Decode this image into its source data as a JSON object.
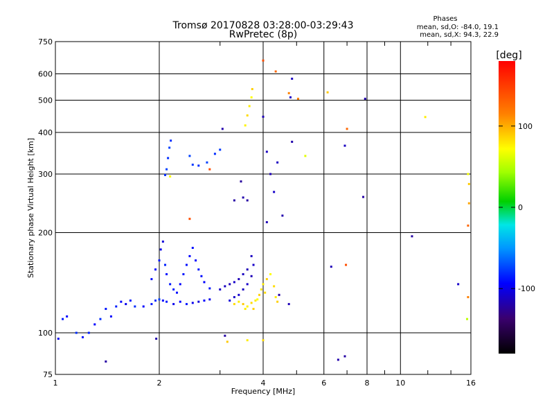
{
  "chart_data": {
    "type": "scatter",
    "title": "Tromsø 20170828 03:28:00-03:29:43",
    "subtitle": "RwPretec (8p)",
    "xlabel": "Frequency [MHz]",
    "ylabel": "Stationary phase Virtual Height [km]",
    "xscale": "log",
    "yscale": "log",
    "xlim": [
      1,
      16
    ],
    "ylim": [
      75,
      750
    ],
    "x_ticks": [
      1,
      2,
      4,
      6,
      8,
      10,
      16
    ],
    "x_tick_labels": [
      "1",
      "2",
      "4",
      "6",
      "8",
      "10",
      "16"
    ],
    "x_minor": [
      3,
      5,
      7,
      9,
      12,
      14
    ],
    "y_ticks": [
      75,
      100,
      200,
      300,
      400,
      500,
      600,
      750
    ],
    "y_tick_labels": [
      "75",
      "100",
      "200",
      "300",
      "400",
      "500",
      "600",
      "750"
    ],
    "grid": true,
    "phases_box": {
      "title": "Phases",
      "line1": "mean, sd,O: -84.0, 19.1",
      "line2": "mean, sd,X:  94.3, 22.9"
    },
    "colorbar": {
      "label": "[deg]",
      "range": [
        -180,
        180
      ],
      "ticks": [
        100,
        0,
        -100
      ],
      "tick_labels": [
        "100",
        "0",
        "-100"
      ]
    },
    "series": [
      {
        "name": "O",
        "points": [
          [
            1.02,
            96,
            -100
          ],
          [
            1.05,
            110,
            -90
          ],
          [
            1.08,
            112,
            -95
          ],
          [
            1.15,
            100,
            -85
          ],
          [
            1.2,
            97,
            -92
          ],
          [
            1.25,
            100,
            -88
          ],
          [
            1.3,
            106,
            -95
          ],
          [
            1.35,
            110,
            -85
          ],
          [
            1.4,
            118,
            -90
          ],
          [
            1.45,
            112,
            -95
          ],
          [
            1.5,
            120,
            -88
          ],
          [
            1.55,
            124,
            -95
          ],
          [
            1.6,
            122,
            -100
          ],
          [
            1.65,
            125,
            -90
          ],
          [
            1.7,
            120,
            -85
          ],
          [
            1.8,
            120,
            -95
          ],
          [
            1.9,
            122,
            -90
          ],
          [
            1.95,
            125,
            -85
          ],
          [
            2.0,
            126,
            -80
          ],
          [
            2.05,
            125,
            -95
          ],
          [
            2.1,
            124,
            -90
          ],
          [
            2.2,
            122,
            -100
          ],
          [
            2.3,
            124,
            -95
          ],
          [
            2.4,
            122,
            -90
          ],
          [
            2.5,
            123,
            -100
          ],
          [
            2.6,
            124,
            -105
          ],
          [
            2.7,
            125,
            -95
          ],
          [
            2.8,
            126,
            -100
          ],
          [
            1.9,
            145,
            -92
          ],
          [
            1.95,
            155,
            -95
          ],
          [
            2.0,
            165,
            -90
          ],
          [
            2.02,
            178,
            -100
          ],
          [
            2.05,
            188,
            -105
          ],
          [
            2.08,
            160,
            -88
          ],
          [
            2.1,
            150,
            -92
          ],
          [
            2.15,
            140,
            -90
          ],
          [
            2.2,
            135,
            -88
          ],
          [
            2.25,
            132,
            -92
          ],
          [
            2.3,
            140,
            -95
          ],
          [
            2.35,
            150,
            -90
          ],
          [
            2.4,
            160,
            -92
          ],
          [
            2.45,
            170,
            -95
          ],
          [
            2.5,
            180,
            -92
          ],
          [
            2.55,
            165,
            -95
          ],
          [
            2.6,
            155,
            -90
          ],
          [
            2.65,
            148,
            -92
          ],
          [
            2.7,
            142,
            -95
          ],
          [
            2.8,
            136,
            -90
          ],
          [
            2.08,
            298,
            -85
          ],
          [
            2.1,
            310,
            -80
          ],
          [
            2.12,
            335,
            -85
          ],
          [
            2.14,
            360,
            -80
          ],
          [
            2.16,
            378,
            -85
          ],
          [
            2.45,
            340,
            -80
          ],
          [
            2.5,
            320,
            -82
          ],
          [
            2.6,
            318,
            -85
          ],
          [
            2.75,
            325,
            -80
          ],
          [
            2.9,
            345,
            -85
          ],
          [
            3.0,
            355,
            -82
          ],
          [
            3.0,
            135,
            -110
          ],
          [
            3.1,
            138,
            -112
          ],
          [
            3.2,
            140,
            -115
          ],
          [
            3.3,
            142,
            -110
          ],
          [
            3.4,
            145,
            -115
          ],
          [
            3.5,
            150,
            -112
          ],
          [
            3.6,
            155,
            -115
          ],
          [
            3.7,
            170,
            -112
          ],
          [
            3.2,
            125,
            -105
          ],
          [
            3.3,
            128,
            -110
          ],
          [
            3.4,
            130,
            -108
          ],
          [
            3.5,
            135,
            -112
          ],
          [
            3.6,
            140,
            -110
          ],
          [
            3.7,
            148,
            -115
          ],
          [
            3.75,
            160,
            -110
          ],
          [
            3.3,
            250,
            -120
          ],
          [
            3.5,
            255,
            -118
          ],
          [
            3.6,
            250,
            -120
          ],
          [
            3.45,
            285,
            -122
          ],
          [
            3.05,
            410,
            -118
          ],
          [
            4.0,
            446,
            -115
          ],
          [
            4.1,
            350,
            -112
          ],
          [
            4.2,
            300,
            -115
          ],
          [
            4.3,
            265,
            -110
          ],
          [
            4.4,
            325,
            -112
          ],
          [
            4.55,
            225,
            -118
          ],
          [
            4.8,
            510,
            -110
          ],
          [
            4.85,
            580,
            -112
          ],
          [
            4.85,
            375,
            -118
          ],
          [
            4.45,
            130,
            -120
          ],
          [
            4.75,
            122,
            -115
          ],
          [
            3.1,
            98,
            -120
          ],
          [
            4.1,
            215,
            -115
          ],
          [
            6.3,
            158,
            -115
          ],
          [
            6.6,
            83,
            -118
          ],
          [
            6.9,
            85,
            -120
          ],
          [
            6.9,
            365,
            -112
          ],
          [
            7.8,
            256,
            -120
          ],
          [
            7.9,
            505,
            -118
          ],
          [
            10.8,
            195,
            -120
          ],
          [
            14.7,
            140,
            -110
          ],
          [
            1.4,
            82,
            -120
          ],
          [
            1.96,
            96,
            -118
          ]
        ]
      },
      {
        "name": "X",
        "points": [
          [
            3.3,
            122,
            105
          ],
          [
            3.4,
            124,
            100
          ],
          [
            3.5,
            122,
            110
          ],
          [
            3.6,
            120,
            98
          ],
          [
            3.7,
            123,
            105
          ],
          [
            3.8,
            125,
            100
          ],
          [
            3.9,
            130,
            108
          ],
          [
            3.95,
            135,
            102
          ],
          [
            4.0,
            140,
            100
          ],
          [
            4.1,
            145,
            108
          ],
          [
            4.2,
            150,
            95
          ],
          [
            4.3,
            138,
            105
          ],
          [
            4.35,
            128,
            100
          ],
          [
            4.4,
            124,
            108
          ],
          [
            3.55,
            118,
            100
          ],
          [
            3.75,
            118,
            108
          ],
          [
            3.85,
            126,
            95
          ],
          [
            4.05,
            132,
            105
          ],
          [
            3.55,
            420,
            98
          ],
          [
            3.6,
            450,
            105
          ],
          [
            3.65,
            480,
            100
          ],
          [
            3.7,
            510,
            95
          ],
          [
            3.72,
            540,
            108
          ],
          [
            3.15,
            94,
            110
          ],
          [
            3.6,
            95,
            100
          ],
          [
            4.0,
            95,
            105
          ],
          [
            2.45,
            220,
            150
          ],
          [
            2.15,
            295,
            95
          ],
          [
            2.8,
            310,
            150
          ],
          [
            4.0,
            658,
            150
          ],
          [
            4.35,
            610,
            140
          ],
          [
            4.75,
            525,
            130
          ],
          [
            5.05,
            505,
            130
          ],
          [
            5.3,
            340,
            80
          ],
          [
            6.15,
            528,
            110
          ],
          [
            7.0,
            410,
            140
          ],
          [
            6.95,
            160,
            150
          ],
          [
            11.8,
            445,
            100
          ],
          [
            15.7,
            300,
            90
          ],
          [
            15.8,
            280,
            110
          ],
          [
            15.8,
            245,
            120
          ],
          [
            15.7,
            210,
            140
          ],
          [
            15.6,
            110,
            60
          ],
          [
            15.7,
            128,
            130
          ]
        ]
      }
    ]
  }
}
